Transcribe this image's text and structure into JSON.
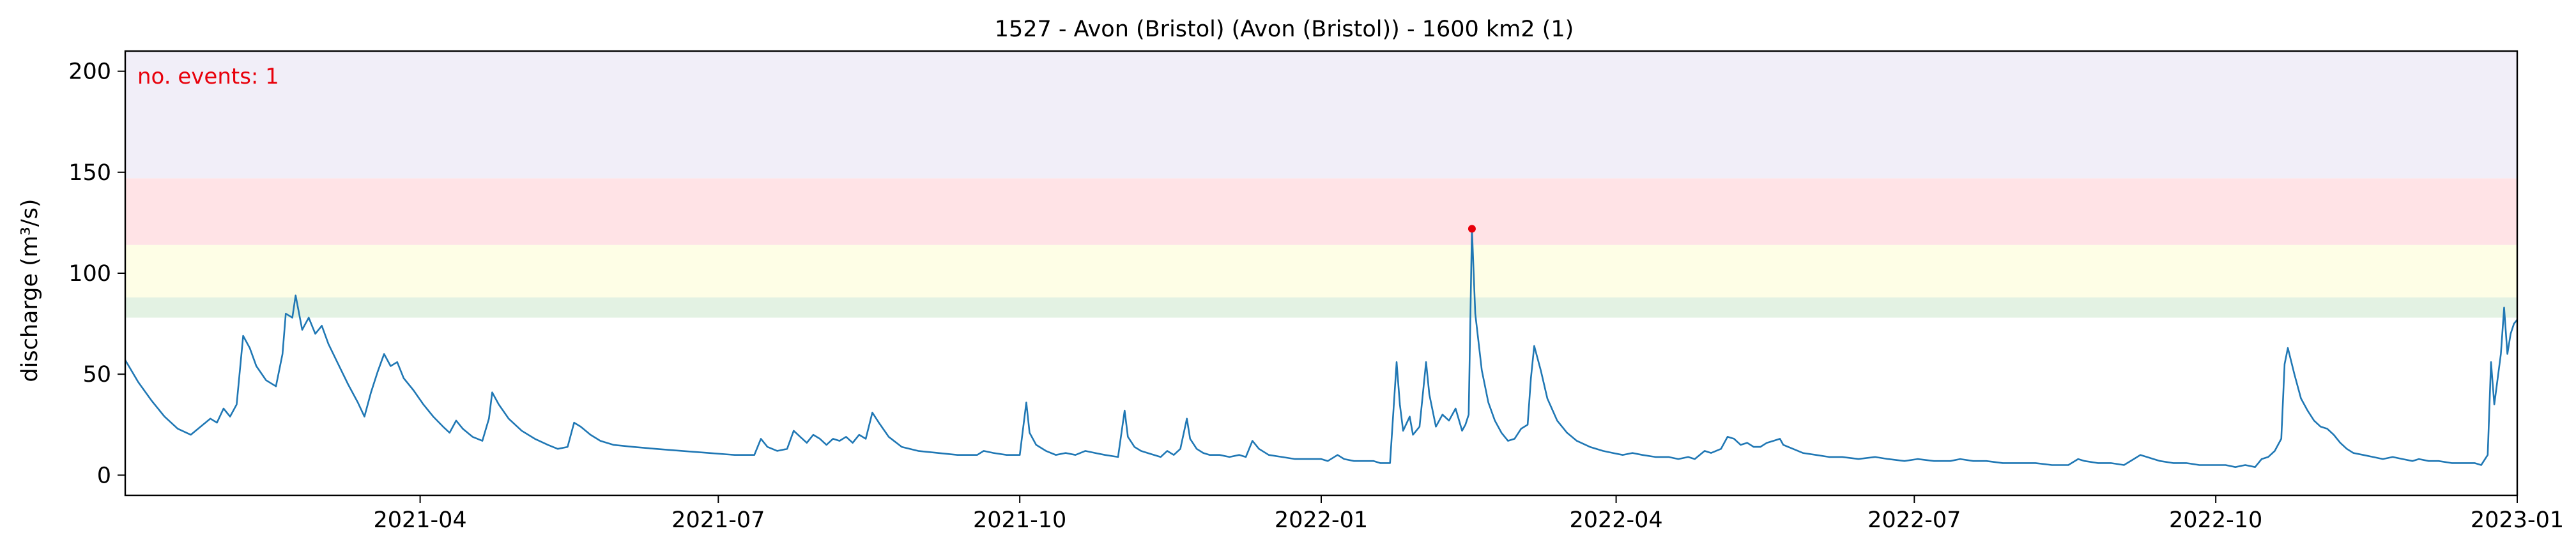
{
  "chart_data": {
    "type": "line",
    "title": "1527 - Avon (Bristol) (Avon (Bristol)) - 1600 km2 (1)",
    "xlabel": "",
    "ylabel": "discharge (m³/s)",
    "xlim": [
      "2021-01-01",
      "2023-01-01"
    ],
    "ylim": [
      -10,
      210
    ],
    "yticks": [
      0,
      50,
      100,
      150,
      200
    ],
    "xticks": [
      {
        "date": "2021-04-01",
        "label": "2021-04"
      },
      {
        "date": "2021-07-01",
        "label": "2021-07"
      },
      {
        "date": "2021-10-01",
        "label": "2021-10"
      },
      {
        "date": "2022-01-01",
        "label": "2022-01"
      },
      {
        "date": "2022-04-01",
        "label": "2022-04"
      },
      {
        "date": "2022-07-01",
        "label": "2022-07"
      },
      {
        "date": "2022-10-01",
        "label": "2022-10"
      },
      {
        "date": "2023-01-01",
        "label": "2023-01"
      }
    ],
    "bands": [
      {
        "from": 78,
        "to": 88,
        "color": "#e3f2e3"
      },
      {
        "from": 88,
        "to": 114,
        "color": "#fefee6"
      },
      {
        "from": 114,
        "to": 147,
        "color": "#ffe3e6"
      },
      {
        "from": 147,
        "to": 210,
        "color": "#f1eef8"
      }
    ],
    "annotation": {
      "text": "no. events: 1",
      "color": "#e8000b"
    },
    "series": [
      {
        "color": "#1f77b4",
        "points": [
          [
            "2021-01-01",
            57
          ],
          [
            "2021-01-05",
            46
          ],
          [
            "2021-01-09",
            37
          ],
          [
            "2021-01-13",
            29
          ],
          [
            "2021-01-17",
            23
          ],
          [
            "2021-01-21",
            20
          ],
          [
            "2021-01-24",
            24
          ],
          [
            "2021-01-27",
            28
          ],
          [
            "2021-01-29",
            26
          ],
          [
            "2021-01-31",
            33
          ],
          [
            "2021-02-02",
            29
          ],
          [
            "2021-02-04",
            35
          ],
          [
            "2021-02-06",
            69
          ],
          [
            "2021-02-08",
            63
          ],
          [
            "2021-02-10",
            54
          ],
          [
            "2021-02-13",
            47
          ],
          [
            "2021-02-16",
            44
          ],
          [
            "2021-02-18",
            60
          ],
          [
            "2021-02-19",
            80
          ],
          [
            "2021-02-21",
            78
          ],
          [
            "2021-02-22",
            89
          ],
          [
            "2021-02-24",
            72
          ],
          [
            "2021-02-26",
            78
          ],
          [
            "2021-02-28",
            70
          ],
          [
            "2021-03-02",
            74
          ],
          [
            "2021-03-04",
            65
          ],
          [
            "2021-03-07",
            55
          ],
          [
            "2021-03-10",
            45
          ],
          [
            "2021-03-13",
            36
          ],
          [
            "2021-03-15",
            29
          ],
          [
            "2021-03-17",
            41
          ],
          [
            "2021-03-19",
            51
          ],
          [
            "2021-03-21",
            60
          ],
          [
            "2021-03-23",
            54
          ],
          [
            "2021-03-25",
            56
          ],
          [
            "2021-03-27",
            48
          ],
          [
            "2021-03-30",
            42
          ],
          [
            "2021-04-02",
            35
          ],
          [
            "2021-04-05",
            29
          ],
          [
            "2021-04-08",
            24
          ],
          [
            "2021-04-10",
            21
          ],
          [
            "2021-04-12",
            27
          ],
          [
            "2021-04-14",
            23
          ],
          [
            "2021-04-17",
            19
          ],
          [
            "2021-04-20",
            17
          ],
          [
            "2021-04-22",
            28
          ],
          [
            "2021-04-23",
            41
          ],
          [
            "2021-04-25",
            35
          ],
          [
            "2021-04-28",
            28
          ],
          [
            "2021-05-02",
            22
          ],
          [
            "2021-05-06",
            18
          ],
          [
            "2021-05-10",
            15
          ],
          [
            "2021-05-13",
            13
          ],
          [
            "2021-05-16",
            14
          ],
          [
            "2021-05-18",
            26
          ],
          [
            "2021-05-20",
            24
          ],
          [
            "2021-05-23",
            20
          ],
          [
            "2021-05-26",
            17
          ],
          [
            "2021-05-30",
            15
          ],
          [
            "2021-06-05",
            14
          ],
          [
            "2021-06-12",
            13
          ],
          [
            "2021-06-20",
            12
          ],
          [
            "2021-06-28",
            11
          ],
          [
            "2021-07-06",
            10
          ],
          [
            "2021-07-12",
            10
          ],
          [
            "2021-07-14",
            18
          ],
          [
            "2021-07-16",
            14
          ],
          [
            "2021-07-19",
            12
          ],
          [
            "2021-07-22",
            13
          ],
          [
            "2021-07-24",
            22
          ],
          [
            "2021-07-26",
            19
          ],
          [
            "2021-07-28",
            16
          ],
          [
            "2021-07-30",
            20
          ],
          [
            "2021-08-01",
            18
          ],
          [
            "2021-08-03",
            15
          ],
          [
            "2021-08-05",
            18
          ],
          [
            "2021-08-07",
            17
          ],
          [
            "2021-08-09",
            19
          ],
          [
            "2021-08-11",
            16
          ],
          [
            "2021-08-13",
            20
          ],
          [
            "2021-08-15",
            18
          ],
          [
            "2021-08-17",
            31
          ],
          [
            "2021-08-19",
            26
          ],
          [
            "2021-08-22",
            19
          ],
          [
            "2021-08-26",
            14
          ],
          [
            "2021-08-31",
            12
          ],
          [
            "2021-09-06",
            11
          ],
          [
            "2021-09-12",
            10
          ],
          [
            "2021-09-18",
            10
          ],
          [
            "2021-09-20",
            12
          ],
          [
            "2021-09-23",
            11
          ],
          [
            "2021-09-27",
            10
          ],
          [
            "2021-10-01",
            10
          ],
          [
            "2021-10-03",
            36
          ],
          [
            "2021-10-04",
            21
          ],
          [
            "2021-10-06",
            15
          ],
          [
            "2021-10-09",
            12
          ],
          [
            "2021-10-12",
            10
          ],
          [
            "2021-10-15",
            11
          ],
          [
            "2021-10-18",
            10
          ],
          [
            "2021-10-21",
            12
          ],
          [
            "2021-10-24",
            11
          ],
          [
            "2021-10-27",
            10
          ],
          [
            "2021-10-31",
            9
          ],
          [
            "2021-11-02",
            32
          ],
          [
            "2021-11-03",
            19
          ],
          [
            "2021-11-05",
            14
          ],
          [
            "2021-11-07",
            12
          ],
          [
            "2021-11-09",
            11
          ],
          [
            "2021-11-11",
            10
          ],
          [
            "2021-11-13",
            9
          ],
          [
            "2021-11-15",
            12
          ],
          [
            "2021-11-17",
            10
          ],
          [
            "2021-11-19",
            13
          ],
          [
            "2021-11-21",
            28
          ],
          [
            "2021-11-22",
            18
          ],
          [
            "2021-11-24",
            13
          ],
          [
            "2021-11-26",
            11
          ],
          [
            "2021-11-28",
            10
          ],
          [
            "2021-12-01",
            10
          ],
          [
            "2021-12-04",
            9
          ],
          [
            "2021-12-07",
            10
          ],
          [
            "2021-12-09",
            9
          ],
          [
            "2021-12-11",
            17
          ],
          [
            "2021-12-13",
            13
          ],
          [
            "2021-12-16",
            10
          ],
          [
            "2021-12-20",
            9
          ],
          [
            "2021-12-24",
            8
          ],
          [
            "2021-12-28",
            8
          ],
          [
            "2022-01-01",
            8
          ],
          [
            "2022-01-03",
            7
          ],
          [
            "2022-01-06",
            10
          ],
          [
            "2022-01-08",
            8
          ],
          [
            "2022-01-11",
            7
          ],
          [
            "2022-01-14",
            7
          ],
          [
            "2022-01-17",
            7
          ],
          [
            "2022-01-19",
            6
          ],
          [
            "2022-01-22",
            6
          ],
          [
            "2022-01-24",
            56
          ],
          [
            "2022-01-25",
            35
          ],
          [
            "2022-01-26",
            22
          ],
          [
            "2022-01-28",
            29
          ],
          [
            "2022-01-29",
            20
          ],
          [
            "2022-01-31",
            24
          ],
          [
            "2022-02-02",
            56
          ],
          [
            "2022-02-03",
            40
          ],
          [
            "2022-02-05",
            24
          ],
          [
            "2022-02-07",
            30
          ],
          [
            "2022-02-09",
            27
          ],
          [
            "2022-02-11",
            33
          ],
          [
            "2022-02-13",
            22
          ],
          [
            "2022-02-14",
            25
          ],
          [
            "2022-02-15",
            30
          ],
          [
            "2022-02-16",
            122
          ],
          [
            "2022-02-17",
            80
          ],
          [
            "2022-02-19",
            52
          ],
          [
            "2022-02-21",
            36
          ],
          [
            "2022-02-23",
            27
          ],
          [
            "2022-02-25",
            21
          ],
          [
            "2022-02-27",
            17
          ],
          [
            "2022-03-01",
            18
          ],
          [
            "2022-03-03",
            23
          ],
          [
            "2022-03-05",
            25
          ],
          [
            "2022-03-06",
            48
          ],
          [
            "2022-03-07",
            64
          ],
          [
            "2022-03-09",
            52
          ],
          [
            "2022-03-11",
            38
          ],
          [
            "2022-03-14",
            27
          ],
          [
            "2022-03-17",
            21
          ],
          [
            "2022-03-20",
            17
          ],
          [
            "2022-03-24",
            14
          ],
          [
            "2022-03-28",
            12
          ],
          [
            "2022-03-31",
            11
          ],
          [
            "2022-04-03",
            10
          ],
          [
            "2022-04-06",
            11
          ],
          [
            "2022-04-09",
            10
          ],
          [
            "2022-04-13",
            9
          ],
          [
            "2022-04-17",
            9
          ],
          [
            "2022-04-20",
            8
          ],
          [
            "2022-04-23",
            9
          ],
          [
            "2022-04-25",
            8
          ],
          [
            "2022-04-28",
            12
          ],
          [
            "2022-04-30",
            11
          ],
          [
            "2022-05-03",
            13
          ],
          [
            "2022-05-05",
            19
          ],
          [
            "2022-05-07",
            18
          ],
          [
            "2022-05-09",
            15
          ],
          [
            "2022-05-11",
            16
          ],
          [
            "2022-05-13",
            14
          ],
          [
            "2022-05-15",
            14
          ],
          [
            "2022-05-17",
            16
          ],
          [
            "2022-05-19",
            17
          ],
          [
            "2022-05-21",
            18
          ],
          [
            "2022-05-22",
            15
          ],
          [
            "2022-05-25",
            13
          ],
          [
            "2022-05-28",
            11
          ],
          [
            "2022-06-01",
            10
          ],
          [
            "2022-06-05",
            9
          ],
          [
            "2022-06-09",
            9
          ],
          [
            "2022-06-14",
            8
          ],
          [
            "2022-06-19",
            9
          ],
          [
            "2022-06-23",
            8
          ],
          [
            "2022-06-28",
            7
          ],
          [
            "2022-07-02",
            8
          ],
          [
            "2022-07-07",
            7
          ],
          [
            "2022-07-12",
            7
          ],
          [
            "2022-07-15",
            8
          ],
          [
            "2022-07-19",
            7
          ],
          [
            "2022-07-23",
            7
          ],
          [
            "2022-07-28",
            6
          ],
          [
            "2022-08-02",
            6
          ],
          [
            "2022-08-07",
            6
          ],
          [
            "2022-08-12",
            5
          ],
          [
            "2022-08-17",
            5
          ],
          [
            "2022-08-20",
            8
          ],
          [
            "2022-08-22",
            7
          ],
          [
            "2022-08-26",
            6
          ],
          [
            "2022-08-30",
            6
          ],
          [
            "2022-09-03",
            5
          ],
          [
            "2022-09-06",
            8
          ],
          [
            "2022-09-08",
            10
          ],
          [
            "2022-09-10",
            9
          ],
          [
            "2022-09-12",
            8
          ],
          [
            "2022-09-14",
            7
          ],
          [
            "2022-09-18",
            6
          ],
          [
            "2022-09-22",
            6
          ],
          [
            "2022-09-26",
            5
          ],
          [
            "2022-09-30",
            5
          ],
          [
            "2022-10-04",
            5
          ],
          [
            "2022-10-07",
            4
          ],
          [
            "2022-10-10",
            5
          ],
          [
            "2022-10-13",
            4
          ],
          [
            "2022-10-14",
            6
          ],
          [
            "2022-10-15",
            8
          ],
          [
            "2022-10-17",
            9
          ],
          [
            "2022-10-19",
            12
          ],
          [
            "2022-10-21",
            18
          ],
          [
            "2022-10-22",
            55
          ],
          [
            "2022-10-23",
            63
          ],
          [
            "2022-10-25",
            50
          ],
          [
            "2022-10-27",
            38
          ],
          [
            "2022-10-29",
            32
          ],
          [
            "2022-10-31",
            27
          ],
          [
            "2022-11-02",
            24
          ],
          [
            "2022-11-04",
            23
          ],
          [
            "2022-11-06",
            20
          ],
          [
            "2022-11-08",
            16
          ],
          [
            "2022-11-10",
            13
          ],
          [
            "2022-11-12",
            11
          ],
          [
            "2022-11-15",
            10
          ],
          [
            "2022-11-18",
            9
          ],
          [
            "2022-11-21",
            8
          ],
          [
            "2022-11-24",
            9
          ],
          [
            "2022-11-27",
            8
          ],
          [
            "2022-11-30",
            7
          ],
          [
            "2022-12-02",
            8
          ],
          [
            "2022-12-05",
            7
          ],
          [
            "2022-12-08",
            7
          ],
          [
            "2022-12-12",
            6
          ],
          [
            "2022-12-16",
            6
          ],
          [
            "2022-12-19",
            6
          ],
          [
            "2022-12-21",
            5
          ],
          [
            "2022-12-23",
            10
          ],
          [
            "2022-12-24",
            56
          ],
          [
            "2022-12-25",
            35
          ],
          [
            "2022-12-27",
            60
          ],
          [
            "2022-12-28",
            83
          ],
          [
            "2022-12-29",
            60
          ],
          [
            "2022-12-30",
            70
          ],
          [
            "2022-12-31",
            75
          ],
          [
            "2023-01-01",
            77
          ]
        ]
      }
    ],
    "events": [
      {
        "date": "2022-02-16",
        "value": 122,
        "color": "#e8000b"
      }
    ]
  }
}
